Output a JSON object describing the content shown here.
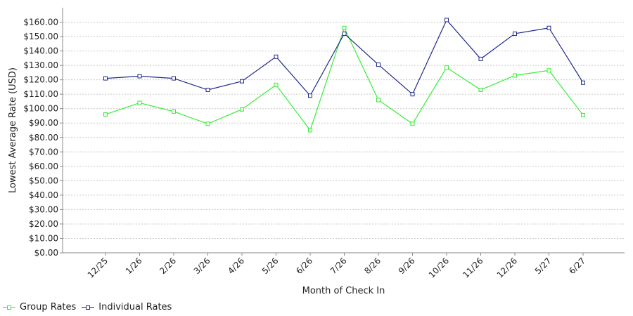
{
  "chart_data": {
    "type": "line",
    "title": "",
    "xlabel": "Month of Check In",
    "ylabel": "Lowest Average Rate (USD)",
    "categories": [
      "12/25",
      "1/26",
      "2/26",
      "3/26",
      "4/26",
      "5/26",
      "6/26",
      "7/26",
      "8/26",
      "9/26",
      "10/26",
      "11/26",
      "12/26",
      "5/27",
      "6/27"
    ],
    "ylim": [
      0,
      170
    ],
    "yticks": [
      {
        "value": 0,
        "label": "$0.00"
      },
      {
        "value": 10,
        "label": "$10.00"
      },
      {
        "value": 20,
        "label": "$20.00"
      },
      {
        "value": 30,
        "label": "$30.00"
      },
      {
        "value": 40,
        "label": "$40.00"
      },
      {
        "value": 50,
        "label": "$50.00"
      },
      {
        "value": 60,
        "label": "$60.00"
      },
      {
        "value": 70,
        "label": "$70.00"
      },
      {
        "value": 80,
        "label": "$80.00"
      },
      {
        "value": 90,
        "label": "$90.00"
      },
      {
        "value": 100,
        "label": "$100.00"
      },
      {
        "value": 110,
        "label": "$110.00"
      },
      {
        "value": 120,
        "label": "$120.00"
      },
      {
        "value": 130,
        "label": "$130.00"
      },
      {
        "value": 140,
        "label": "$140.00"
      },
      {
        "value": 150,
        "label": "$150.00"
      },
      {
        "value": 160,
        "label": "$160.00"
      }
    ],
    "grid": true,
    "legend_position": "bottom-left",
    "series": [
      {
        "name": "Group Rates",
        "color": "#33ee33",
        "values": [
          96,
          104,
          98,
          89.5,
          99.5,
          116.5,
          85,
          156,
          106,
          89.5,
          128.5,
          113,
          123,
          126.5,
          95.5
        ]
      },
      {
        "name": "Individual Rates",
        "color": "#1f2a8c",
        "values": [
          121,
          122.5,
          121,
          113,
          119,
          136,
          109,
          152,
          130.5,
          110,
          161.5,
          134.5,
          152,
          156,
          118
        ]
      }
    ]
  }
}
